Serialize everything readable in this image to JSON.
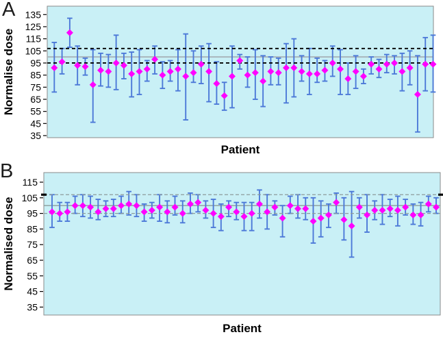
{
  "figure": {
    "panels": [
      {
        "letter": "A",
        "y_axis_title": "Normalise dose",
        "x_axis_title": "Patient"
      },
      {
        "letter": "B",
        "y_axis_title": "Normalised dose",
        "x_axis_title": "Patient"
      }
    ]
  },
  "colors": {
    "plot_background": "#C9F0F6",
    "frame": "#8A8A8A",
    "error_bar": "#4C79D8",
    "marker": "#FF00FF",
    "dashed_reference": "#000000",
    "mean_line_gray": "#A9B6BC",
    "thin_gray_reference": "#8C9B9B",
    "edge_tick_black": "#000000"
  },
  "chart_data": [
    {
      "type": "scatter",
      "title": "",
      "xlabel": "Patient",
      "ylabel": "Normalise dose",
      "ylim": [
        35,
        140
      ],
      "yticks": [
        135,
        125,
        115,
        105,
        95,
        85,
        75,
        65,
        55,
        45,
        35
      ],
      "x_tick_labels": "none",
      "legend": "none",
      "grid": "off",
      "reference_lines": [
        {
          "value": 107,
          "style": "dashed-black"
        },
        {
          "value": 100,
          "style": "solid-gray"
        },
        {
          "value": 95,
          "style": "dashed-black"
        }
      ],
      "points_format": [
        "value",
        "error_low",
        "error_high"
      ],
      "points": [
        [
          91,
          71,
          112
        ],
        [
          96,
          86,
          107
        ],
        [
          120,
          108,
          132
        ],
        [
          93,
          77,
          109
        ],
        [
          92,
          85,
          99
        ],
        [
          77,
          46,
          106
        ],
        [
          89,
          76,
          103
        ],
        [
          88,
          75,
          102
        ],
        [
          95,
          73,
          118
        ],
        [
          93,
          82,
          103
        ],
        [
          86,
          67,
          104
        ],
        [
          88,
          69,
          106
        ],
        [
          90,
          80,
          97
        ],
        [
          98,
          86,
          109
        ],
        [
          85,
          74,
          96
        ],
        [
          88,
          80,
          97
        ],
        [
          90,
          72,
          106
        ],
        [
          84,
          48,
          119
        ],
        [
          87,
          79,
          105
        ],
        [
          94,
          78,
          109
        ],
        [
          88,
          63,
          111
        ],
        [
          78,
          61,
          96
        ],
        [
          68,
          56,
          79
        ],
        [
          84,
          58,
          109
        ],
        [
          97,
          90,
          102
        ],
        [
          85,
          75,
          100
        ],
        [
          87,
          65,
          106
        ],
        [
          80,
          59,
          101
        ],
        [
          88,
          77,
          100
        ],
        [
          87,
          77,
          99
        ],
        [
          91,
          62,
          111
        ],
        [
          91,
          67,
          115
        ],
        [
          88,
          80,
          101
        ],
        [
          86,
          69,
          107
        ],
        [
          86,
          79,
          99
        ],
        [
          89,
          80,
          97
        ],
        [
          95,
          84,
          109
        ],
        [
          90,
          69,
          106
        ],
        [
          82,
          69,
          95
        ],
        [
          88,
          74,
          101
        ],
        [
          84,
          78,
          90
        ],
        [
          94,
          86,
          100
        ],
        [
          90,
          83,
          98
        ],
        [
          94,
          87,
          102
        ],
        [
          95,
          86,
          101
        ],
        [
          88,
          72,
          103
        ],
        [
          91,
          77,
          105
        ],
        [
          69,
          38,
          101
        ],
        [
          94,
          72,
          116
        ],
        [
          94,
          71,
          118
        ]
      ]
    },
    {
      "type": "scatter",
      "title": "",
      "xlabel": "Patient",
      "ylabel": "Normalised dose",
      "ylim": [
        32,
        120
      ],
      "yticks": [
        115,
        105,
        95,
        85,
        75,
        65,
        55,
        45,
        35
      ],
      "x_tick_labels": "none",
      "legend": "none",
      "grid": "off",
      "reference_lines": [
        {
          "value": 107,
          "style": "dashed-gray",
          "edge_ticks": true
        },
        {
          "value": 100,
          "style": "solid-gray"
        },
        {
          "value": 95,
          "style": "dashed-gray"
        }
      ],
      "points_format": [
        "value",
        "error_low",
        "error_high"
      ],
      "points": [
        [
          96,
          86,
          107
        ],
        [
          95,
          90,
          102
        ],
        [
          96,
          90,
          102
        ],
        [
          100,
          95,
          106
        ],
        [
          100,
          93,
          107
        ],
        [
          99,
          92,
          106
        ],
        [
          96,
          91,
          104
        ],
        [
          98,
          93,
          103
        ],
        [
          98,
          93,
          104
        ],
        [
          100,
          95,
          106
        ],
        [
          101,
          94,
          109
        ],
        [
          100,
          93,
          107
        ],
        [
          96,
          90,
          101
        ],
        [
          97,
          92,
          102
        ],
        [
          99,
          90,
          107
        ],
        [
          96,
          89,
          103
        ],
        [
          99,
          94,
          106
        ],
        [
          95,
          89,
          103
        ],
        [
          101,
          95,
          108
        ],
        [
          102,
          96,
          107
        ],
        [
          97,
          92,
          103
        ],
        [
          95,
          86,
          104
        ],
        [
          93,
          84,
          101
        ],
        [
          99,
          93,
          103
        ],
        [
          96,
          91,
          102
        ],
        [
          93,
          84,
          102
        ],
        [
          95,
          84,
          102
        ],
        [
          101,
          92,
          110
        ],
        [
          96,
          85,
          107
        ],
        [
          99,
          94,
          103
        ],
        [
          92,
          80,
          100
        ],
        [
          100,
          95,
          106
        ],
        [
          98,
          92,
          107
        ],
        [
          98,
          91,
          105
        ],
        [
          90,
          76,
          105
        ],
        [
          92,
          80,
          103
        ],
        [
          94,
          86,
          101
        ],
        [
          102,
          95,
          108
        ],
        [
          91,
          78,
          105
        ],
        [
          87,
          67,
          109
        ],
        [
          99,
          92,
          105
        ],
        [
          94,
          83,
          107
        ],
        [
          97,
          91,
          103
        ],
        [
          97,
          88,
          107
        ],
        [
          98,
          93,
          104
        ],
        [
          97,
          87,
          106
        ],
        [
          99,
          94,
          104
        ],
        [
          94,
          88,
          101
        ],
        [
          94,
          87,
          102
        ],
        [
          101,
          96,
          106
        ],
        [
          99,
          95,
          105
        ]
      ]
    }
  ]
}
